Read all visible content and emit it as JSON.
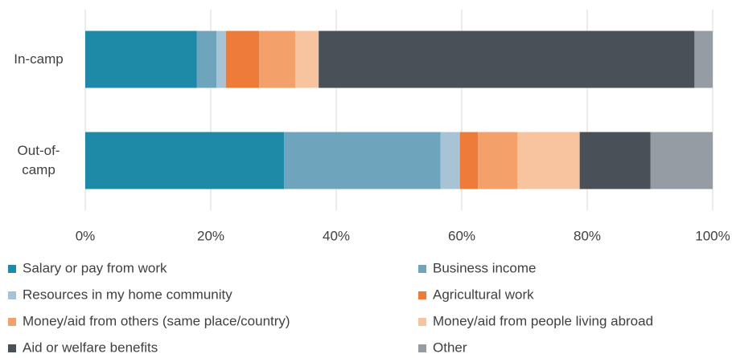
{
  "chart_data": {
    "type": "stacked-bar-horizontal",
    "categories": [
      "In-camp",
      "Out-of-camp"
    ],
    "series": [
      {
        "name": "Salary or pay from work",
        "color": "#1f8aa8",
        "values": [
          17.8,
          31.7
        ]
      },
      {
        "name": "Business income",
        "color": "#6fa5bc",
        "values": [
          3.1,
          24.9
        ]
      },
      {
        "name": "Resources in my home community",
        "color": "#a7c4d6",
        "values": [
          1.5,
          3.1
        ]
      },
      {
        "name": "Agricultural work",
        "color": "#ee7b3a",
        "values": [
          5.3,
          2.9
        ]
      },
      {
        "name": "Money/aid from others (same place/country)",
        "color": "#f3a06a",
        "values": [
          5.8,
          6.3
        ]
      },
      {
        "name": "Money/aid from people living abroad",
        "color": "#f8c4a0",
        "values": [
          3.7,
          9.9
        ]
      },
      {
        "name": "Aid or welfare benefits",
        "color": "#4a5058",
        "values": [
          59.9,
          11.3
        ]
      },
      {
        "name": "Other",
        "color": "#959ca3",
        "values": [
          2.9,
          9.9
        ]
      }
    ],
    "xlim": [
      0,
      100
    ],
    "xticks": [
      {
        "value": 0,
        "label": "0%"
      },
      {
        "value": 20,
        "label": "20%"
      },
      {
        "value": 40,
        "label": "40%"
      },
      {
        "value": 60,
        "label": "60%"
      },
      {
        "value": 80,
        "label": "80%"
      },
      {
        "value": 100,
        "label": "100%"
      }
    ],
    "grid": true,
    "legend": "bottom"
  }
}
